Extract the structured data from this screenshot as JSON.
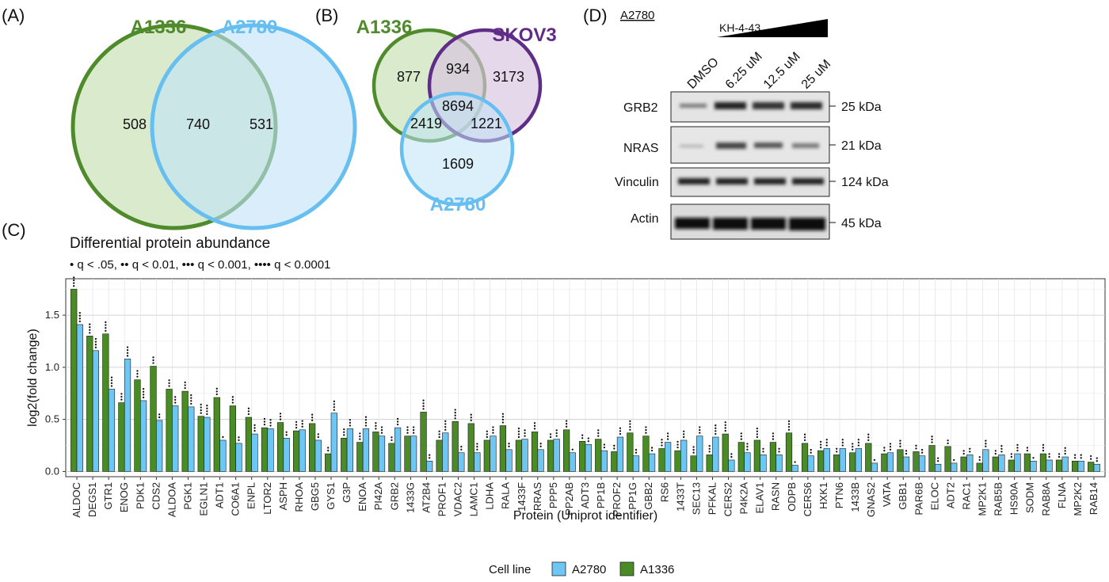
{
  "panel_labels": {
    "a": "(A)",
    "b": "(B)",
    "c": "(C)",
    "d": "(D)"
  },
  "colors": {
    "a2780_fill": "#bfe3f7",
    "a2780_stroke": "#66bff0",
    "a1336_fill": "#d6e8c8",
    "a1336_stroke": "#4f8a2b",
    "skov3_fill": "#d8c3e0",
    "skov3_stroke": "#5f2d88",
    "bar_a2780": "#6ec6f4",
    "bar_a1336": "#4a8b25"
  },
  "venn_a": {
    "left_label": "A1336",
    "right_label": "A2780",
    "left_only": "508",
    "overlap": "740",
    "right_only": "531"
  },
  "venn_b": {
    "a1336_label": "A1336",
    "skov3_label": "SKOV3",
    "a2780_label": "A2780",
    "a1336_only": "877",
    "a1336_skov3": "934",
    "skov3_only": "3173",
    "all_three": "8694",
    "a1336_a2780": "2419",
    "skov3_a2780": "1221",
    "a2780_only": "1609"
  },
  "blot": {
    "cell_line": "A2780",
    "compound": "KH-4-43",
    "lanes": [
      "DMSO",
      "6.25 uM",
      "12.5 uM",
      "25 uM"
    ],
    "rows": [
      {
        "protein": "GRB2",
        "kda": "25 kDa"
      },
      {
        "protein": "NRAS",
        "kda": "21 kDa"
      },
      {
        "protein": "Vinculin",
        "kda": "124 kDa"
      },
      {
        "protein": "Actin",
        "kda": "45 kDa"
      }
    ]
  },
  "chart_data": {
    "type": "bar",
    "title": "Differential protein abundance",
    "subtitle": "• q < .05, •• q < 0.01, ••• q < 0.001, •••• q < 0.0001",
    "xlabel": "Protein (Uniprot identifier)",
    "ylabel": "log2(fold change)",
    "ylim": [
      -0.05,
      1.85
    ],
    "yticks": [
      "0.0",
      "0.5",
      "1.0",
      "1.5"
    ],
    "grid": true,
    "legend": {
      "title": "Cell line",
      "position": "bottom",
      "items": [
        "A2780",
        "A1336"
      ]
    },
    "categories": [
      "ALDOC",
      "DEGS1",
      "GTR1",
      "ENOG",
      "PDK1",
      "CDS2",
      "ALDOA",
      "PGK1",
      "EGLN1",
      "ADT1",
      "CO6A1",
      "ENPL",
      "LTOR2",
      "ASPH",
      "RHOA",
      "GBG5",
      "GYS1",
      "G3P",
      "ENOA",
      "PI42A",
      "GRB2",
      "1433G",
      "AT2B4",
      "PROF1",
      "VDAC2",
      "LAMC1",
      "LDHA",
      "RALA",
      "1433F",
      "RRAS",
      "PPP5",
      "PP2AB",
      "ADT3",
      "PP1B",
      "PROF2",
      "PP1G",
      "GBB2",
      "RS6",
      "1433T",
      "SEC13",
      "PFKAL",
      "CERS2",
      "P4K2A",
      "ELAV1",
      "RASN",
      "ODPB",
      "CERS6",
      "HXK1",
      "PTN6",
      "1433B",
      "GNAS2",
      "VATA",
      "GBB1",
      "PAR6B",
      "ELOC",
      "ADT2",
      "RAC1",
      "MP2K1",
      "RAB5B",
      "HS90A",
      "SODM",
      "RAB8A",
      "FLNA",
      "MP2K2",
      "RAB14"
    ],
    "series": [
      {
        "name": "A1336",
        "values": [
          1.75,
          1.3,
          1.32,
          0.66,
          0.88,
          1.01,
          0.79,
          0.77,
          0.53,
          0.71,
          0.63,
          0.52,
          0.42,
          0.47,
          0.39,
          0.46,
          0.17,
          0.32,
          0.28,
          0.38,
          0.27,
          0.34,
          0.57,
          0.3,
          0.48,
          0.46,
          0.3,
          0.44,
          0.3,
          0.38,
          0.3,
          0.4,
          0.29,
          0.31,
          0.19,
          0.37,
          0.34,
          0.22,
          0.2,
          0.15,
          0.16,
          0.36,
          0.28,
          0.3,
          0.28,
          0.37,
          0.27,
          0.2,
          0.16,
          0.18,
          0.27,
          0.17,
          0.21,
          0.19,
          0.25,
          0.24,
          0.14,
          0.08,
          0.14,
          0.11,
          0.17,
          0.17,
          0.11,
          0.1,
          0.09
        ],
        "sig": [
          4,
          4,
          4,
          3,
          3,
          3,
          3,
          3,
          4,
          3,
          3,
          3,
          3,
          3,
          3,
          3,
          2,
          3,
          3,
          3,
          2,
          3,
          4,
          3,
          4,
          3,
          3,
          4,
          4,
          3,
          2,
          3,
          2,
          3,
          2,
          4,
          3,
          3,
          3,
          3,
          3,
          4,
          3,
          4,
          3,
          4,
          3,
          3,
          2,
          3,
          3,
          2,
          3,
          2,
          3,
          2,
          2,
          2,
          2,
          2,
          2,
          3,
          2,
          2,
          2
        ]
      },
      {
        "name": "A2780",
        "values": [
          1.41,
          1.16,
          0.79,
          1.08,
          0.68,
          0.49,
          0.63,
          0.62,
          0.52,
          0.3,
          0.27,
          0.36,
          0.41,
          0.32,
          0.4,
          0.3,
          0.56,
          0.41,
          0.41,
          0.34,
          0.42,
          0.34,
          0.1,
          0.37,
          0.18,
          0.18,
          0.34,
          0.21,
          0.31,
          0.21,
          0.31,
          0.18,
          0.26,
          0.2,
          0.33,
          0.15,
          0.17,
          0.28,
          0.3,
          0.34,
          0.33,
          0.11,
          0.18,
          0.16,
          0.16,
          0.06,
          0.15,
          0.22,
          0.22,
          0.22,
          0.08,
          0.18,
          0.14,
          0.15,
          0.07,
          0.08,
          0.16,
          0.21,
          0.16,
          0.17,
          0.1,
          0.11,
          0.14,
          0.1,
          0.07
        ],
        "sig": [
          4,
          4,
          4,
          4,
          4,
          2,
          3,
          4,
          4,
          1,
          2,
          3,
          3,
          2,
          3,
          2,
          4,
          3,
          4,
          3,
          3,
          3,
          2,
          4,
          2,
          3,
          3,
          2,
          3,
          2,
          3,
          1,
          2,
          2,
          3,
          2,
          2,
          3,
          3,
          3,
          4,
          2,
          3,
          2,
          2,
          1,
          2,
          3,
          3,
          3,
          1,
          3,
          2,
          2,
          2,
          1,
          2,
          3,
          3,
          3,
          1,
          2,
          3,
          2,
          2
        ]
      }
    ]
  }
}
